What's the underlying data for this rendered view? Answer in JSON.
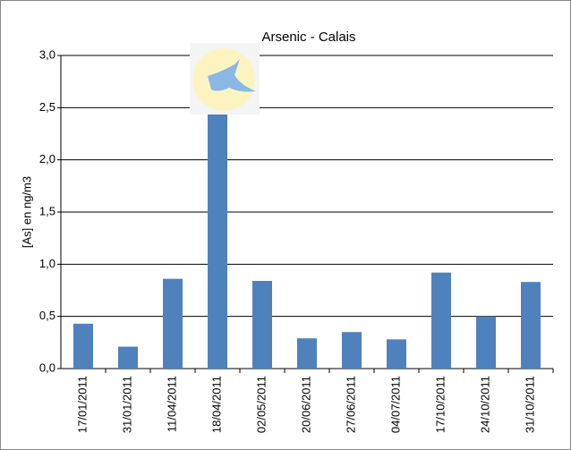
{
  "chart_data": {
    "type": "bar",
    "title": "Arsenic - Calais",
    "y_label": "[As] en ng/m3",
    "categories": [
      "17/01/2011",
      "31/01/2011",
      "11/04/2011",
      "18/04/2011",
      "02/05/2011",
      "20/06/2011",
      "27/06/2011",
      "04/07/2011",
      "17/10/2011",
      "24/10/2011",
      "31/10/2011"
    ],
    "values": [
      0.43,
      0.21,
      0.86,
      3.0,
      0.84,
      0.29,
      0.35,
      0.28,
      0.92,
      0.5,
      0.83
    ],
    "color": "#4f81bd",
    "ylim": [
      0,
      3
    ],
    "yticks": [
      {
        "value": 0,
        "label": "0,0"
      },
      {
        "value": 0.5,
        "label": "0,5"
      },
      {
        "value": 1,
        "label": "1,0"
      },
      {
        "value": 1.5,
        "label": "1,5"
      },
      {
        "value": 2,
        "label": "2,0"
      },
      {
        "value": 2.5,
        "label": "2,5"
      },
      {
        "value": 3,
        "label": "3,0"
      }
    ],
    "grid": true
  }
}
